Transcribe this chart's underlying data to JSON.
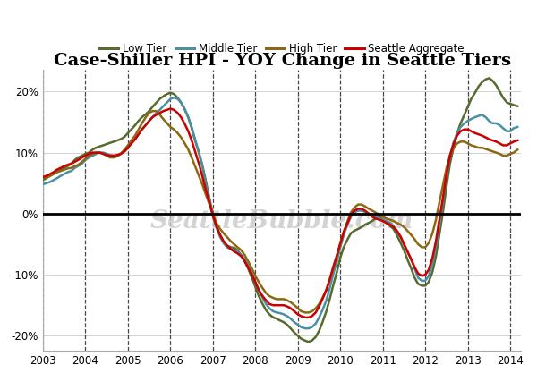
{
  "title": "Case-Shiller HPI - YOY Change in Seattle Tiers",
  "background_color": "#ffffff",
  "watermark": "SeattleBubble.com",
  "ylim": [
    -0.225,
    0.235
  ],
  "yticks": [
    -0.2,
    -0.1,
    0.0,
    0.1,
    0.2
  ],
  "years": [
    2003,
    2004,
    2005,
    2006,
    2007,
    2008,
    2009,
    2010,
    2011,
    2012,
    2013,
    2014
  ],
  "series": {
    "Low Tier": {
      "color": "#556b2f",
      "linewidth": 1.8,
      "data_x": [
        2003.0,
        2003.08,
        2003.17,
        2003.25,
        2003.33,
        2003.42,
        2003.5,
        2003.58,
        2003.67,
        2003.75,
        2003.83,
        2003.92,
        2004.0,
        2004.08,
        2004.17,
        2004.25,
        2004.33,
        2004.42,
        2004.5,
        2004.58,
        2004.67,
        2004.75,
        2004.83,
        2004.92,
        2005.0,
        2005.08,
        2005.17,
        2005.25,
        2005.33,
        2005.42,
        2005.5,
        2005.58,
        2005.67,
        2005.75,
        2005.83,
        2005.92,
        2006.0,
        2006.08,
        2006.17,
        2006.25,
        2006.33,
        2006.42,
        2006.5,
        2006.58,
        2006.67,
        2006.75,
        2006.83,
        2006.92,
        2007.0,
        2007.08,
        2007.17,
        2007.25,
        2007.33,
        2007.42,
        2007.5,
        2007.58,
        2007.67,
        2007.75,
        2007.83,
        2007.92,
        2008.0,
        2008.08,
        2008.17,
        2008.25,
        2008.33,
        2008.42,
        2008.5,
        2008.58,
        2008.67,
        2008.75,
        2008.83,
        2008.92,
        2009.0,
        2009.08,
        2009.17,
        2009.25,
        2009.33,
        2009.42,
        2009.5,
        2009.58,
        2009.67,
        2009.75,
        2009.83,
        2009.92,
        2010.0,
        2010.08,
        2010.17,
        2010.25,
        2010.33,
        2010.42,
        2010.5,
        2010.58,
        2010.67,
        2010.75,
        2010.83,
        2010.92,
        2011.0,
        2011.08,
        2011.17,
        2011.25,
        2011.33,
        2011.42,
        2011.5,
        2011.58,
        2011.67,
        2011.75,
        2011.83,
        2011.92,
        2012.0,
        2012.08,
        2012.17,
        2012.25,
        2012.33,
        2012.42,
        2012.5,
        2012.58,
        2012.67,
        2012.75,
        2012.83,
        2012.92,
        2013.0,
        2013.08,
        2013.17,
        2013.25,
        2013.33,
        2013.42,
        2013.5,
        2013.58,
        2013.67,
        2013.75,
        2013.83,
        2013.92,
        2014.0,
        2014.08,
        2014.17
      ],
      "data_y": [
        0.055,
        0.058,
        0.062,
        0.065,
        0.068,
        0.072,
        0.075,
        0.078,
        0.082,
        0.088,
        0.092,
        0.095,
        0.098,
        0.1,
        0.105,
        0.108,
        0.11,
        0.112,
        0.114,
        0.116,
        0.118,
        0.12,
        0.122,
        0.126,
        0.132,
        0.138,
        0.145,
        0.152,
        0.158,
        0.163,
        0.168,
        0.175,
        0.182,
        0.188,
        0.192,
        0.196,
        0.198,
        0.196,
        0.19,
        0.182,
        0.172,
        0.158,
        0.14,
        0.12,
        0.1,
        0.08,
        0.055,
        0.025,
        -0.002,
        -0.02,
        -0.035,
        -0.045,
        -0.052,
        -0.055,
        -0.056,
        -0.06,
        -0.068,
        -0.078,
        -0.09,
        -0.105,
        -0.12,
        -0.135,
        -0.148,
        -0.158,
        -0.165,
        -0.17,
        -0.172,
        -0.175,
        -0.178,
        -0.182,
        -0.188,
        -0.195,
        -0.2,
        -0.205,
        -0.208,
        -0.21,
        -0.208,
        -0.202,
        -0.192,
        -0.178,
        -0.16,
        -0.14,
        -0.118,
        -0.095,
        -0.072,
        -0.055,
        -0.042,
        -0.032,
        -0.028,
        -0.025,
        -0.022,
        -0.018,
        -0.015,
        -0.012,
        -0.008,
        -0.005,
        -0.01,
        -0.015,
        -0.02,
        -0.025,
        -0.035,
        -0.048,
        -0.06,
        -0.075,
        -0.09,
        -0.105,
        -0.115,
        -0.118,
        -0.118,
        -0.112,
        -0.095,
        -0.07,
        -0.035,
        0.005,
        0.045,
        0.082,
        0.11,
        0.132,
        0.148,
        0.162,
        0.175,
        0.188,
        0.198,
        0.208,
        0.215,
        0.22,
        0.222,
        0.218,
        0.21,
        0.2,
        0.19,
        0.182,
        0.18,
        0.178,
        0.176
      ]
    },
    "Middle Tier": {
      "color": "#4a90a4",
      "linewidth": 1.8,
      "data_x": [
        2003.0,
        2003.08,
        2003.17,
        2003.25,
        2003.33,
        2003.42,
        2003.5,
        2003.58,
        2003.67,
        2003.75,
        2003.83,
        2003.92,
        2004.0,
        2004.08,
        2004.17,
        2004.25,
        2004.33,
        2004.42,
        2004.5,
        2004.58,
        2004.67,
        2004.75,
        2004.83,
        2004.92,
        2005.0,
        2005.08,
        2005.17,
        2005.25,
        2005.33,
        2005.42,
        2005.5,
        2005.58,
        2005.67,
        2005.75,
        2005.83,
        2005.92,
        2006.0,
        2006.08,
        2006.17,
        2006.25,
        2006.33,
        2006.42,
        2006.5,
        2006.58,
        2006.67,
        2006.75,
        2006.83,
        2006.92,
        2007.0,
        2007.08,
        2007.17,
        2007.25,
        2007.33,
        2007.42,
        2007.5,
        2007.58,
        2007.67,
        2007.75,
        2007.83,
        2007.92,
        2008.0,
        2008.08,
        2008.17,
        2008.25,
        2008.33,
        2008.42,
        2008.5,
        2008.58,
        2008.67,
        2008.75,
        2008.83,
        2008.92,
        2009.0,
        2009.08,
        2009.17,
        2009.25,
        2009.33,
        2009.42,
        2009.5,
        2009.58,
        2009.67,
        2009.75,
        2009.83,
        2009.92,
        2010.0,
        2010.08,
        2010.17,
        2010.25,
        2010.33,
        2010.42,
        2010.5,
        2010.58,
        2010.67,
        2010.75,
        2010.83,
        2010.92,
        2011.0,
        2011.08,
        2011.17,
        2011.25,
        2011.33,
        2011.42,
        2011.5,
        2011.58,
        2011.67,
        2011.75,
        2011.83,
        2011.92,
        2012.0,
        2012.08,
        2012.17,
        2012.25,
        2012.33,
        2012.42,
        2012.5,
        2012.58,
        2012.67,
        2012.75,
        2012.83,
        2012.92,
        2013.0,
        2013.08,
        2013.17,
        2013.25,
        2013.33,
        2013.42,
        2013.5,
        2013.58,
        2013.67,
        2013.75,
        2013.83,
        2013.92,
        2014.0,
        2014.08,
        2014.17
      ],
      "data_y": [
        0.048,
        0.05,
        0.052,
        0.055,
        0.058,
        0.062,
        0.065,
        0.068,
        0.07,
        0.075,
        0.078,
        0.082,
        0.088,
        0.092,
        0.095,
        0.098,
        0.1,
        0.1,
        0.098,
        0.096,
        0.095,
        0.096,
        0.098,
        0.102,
        0.108,
        0.115,
        0.122,
        0.13,
        0.138,
        0.145,
        0.152,
        0.158,
        0.165,
        0.17,
        0.176,
        0.182,
        0.188,
        0.19,
        0.188,
        0.182,
        0.172,
        0.158,
        0.142,
        0.122,
        0.1,
        0.078,
        0.052,
        0.022,
        -0.005,
        -0.022,
        -0.038,
        -0.048,
        -0.055,
        -0.058,
        -0.06,
        -0.062,
        -0.068,
        -0.075,
        -0.085,
        -0.098,
        -0.112,
        -0.125,
        -0.138,
        -0.148,
        -0.155,
        -0.16,
        -0.162,
        -0.163,
        -0.165,
        -0.168,
        -0.172,
        -0.178,
        -0.182,
        -0.186,
        -0.188,
        -0.188,
        -0.186,
        -0.18,
        -0.17,
        -0.158,
        -0.142,
        -0.122,
        -0.1,
        -0.078,
        -0.055,
        -0.035,
        -0.018,
        -0.005,
        0.002,
        0.005,
        0.005,
        0.003,
        0.0,
        -0.003,
        -0.005,
        -0.008,
        -0.01,
        -0.012,
        -0.015,
        -0.02,
        -0.028,
        -0.038,
        -0.05,
        -0.062,
        -0.075,
        -0.09,
        -0.105,
        -0.11,
        -0.11,
        -0.102,
        -0.082,
        -0.055,
        -0.02,
        0.022,
        0.062,
        0.095,
        0.118,
        0.132,
        0.142,
        0.148,
        0.152,
        0.155,
        0.158,
        0.16,
        0.162,
        0.158,
        0.152,
        0.148,
        0.148,
        0.145,
        0.14,
        0.135,
        0.135,
        0.14,
        0.142
      ]
    },
    "High Tier": {
      "color": "#8b6914",
      "linewidth": 1.8,
      "data_x": [
        2003.0,
        2003.08,
        2003.17,
        2003.25,
        2003.33,
        2003.42,
        2003.5,
        2003.58,
        2003.67,
        2003.75,
        2003.83,
        2003.92,
        2004.0,
        2004.08,
        2004.17,
        2004.25,
        2004.33,
        2004.42,
        2004.5,
        2004.58,
        2004.67,
        2004.75,
        2004.83,
        2004.92,
        2005.0,
        2005.08,
        2005.17,
        2005.25,
        2005.33,
        2005.42,
        2005.5,
        2005.58,
        2005.67,
        2005.75,
        2005.83,
        2005.92,
        2006.0,
        2006.08,
        2006.17,
        2006.25,
        2006.33,
        2006.42,
        2006.5,
        2006.58,
        2006.67,
        2006.75,
        2006.83,
        2006.92,
        2007.0,
        2007.08,
        2007.17,
        2007.25,
        2007.33,
        2007.42,
        2007.5,
        2007.58,
        2007.67,
        2007.75,
        2007.83,
        2007.92,
        2008.0,
        2008.08,
        2008.17,
        2008.25,
        2008.33,
        2008.42,
        2008.5,
        2008.58,
        2008.67,
        2008.75,
        2008.83,
        2008.92,
        2009.0,
        2009.08,
        2009.17,
        2009.25,
        2009.33,
        2009.42,
        2009.5,
        2009.58,
        2009.67,
        2009.75,
        2009.83,
        2009.92,
        2010.0,
        2010.08,
        2010.17,
        2010.25,
        2010.33,
        2010.42,
        2010.5,
        2010.58,
        2010.67,
        2010.75,
        2010.83,
        2010.92,
        2011.0,
        2011.08,
        2011.17,
        2011.25,
        2011.33,
        2011.42,
        2011.5,
        2011.58,
        2011.67,
        2011.75,
        2011.83,
        2011.92,
        2012.0,
        2012.08,
        2012.17,
        2012.25,
        2012.33,
        2012.42,
        2012.5,
        2012.58,
        2012.67,
        2012.75,
        2012.83,
        2012.92,
        2013.0,
        2013.08,
        2013.17,
        2013.25,
        2013.33,
        2013.42,
        2013.5,
        2013.58,
        2013.67,
        2013.75,
        2013.83,
        2013.92,
        2014.0,
        2014.08,
        2014.17
      ],
      "data_y": [
        0.058,
        0.06,
        0.062,
        0.065,
        0.068,
        0.07,
        0.072,
        0.074,
        0.075,
        0.078,
        0.08,
        0.085,
        0.09,
        0.095,
        0.098,
        0.1,
        0.1,
        0.098,
        0.095,
        0.092,
        0.092,
        0.094,
        0.098,
        0.105,
        0.112,
        0.12,
        0.128,
        0.138,
        0.148,
        0.158,
        0.165,
        0.168,
        0.168,
        0.162,
        0.155,
        0.148,
        0.142,
        0.138,
        0.132,
        0.125,
        0.116,
        0.105,
        0.092,
        0.078,
        0.062,
        0.048,
        0.032,
        0.015,
        0.0,
        -0.015,
        -0.025,
        -0.032,
        -0.038,
        -0.045,
        -0.05,
        -0.055,
        -0.06,
        -0.068,
        -0.078,
        -0.09,
        -0.102,
        -0.112,
        -0.122,
        -0.13,
        -0.135,
        -0.138,
        -0.14,
        -0.14,
        -0.14,
        -0.142,
        -0.145,
        -0.15,
        -0.155,
        -0.16,
        -0.162,
        -0.162,
        -0.16,
        -0.155,
        -0.148,
        -0.138,
        -0.125,
        -0.108,
        -0.09,
        -0.07,
        -0.05,
        -0.03,
        -0.012,
        0.002,
        0.01,
        0.015,
        0.015,
        0.012,
        0.008,
        0.005,
        0.002,
        -0.002,
        -0.005,
        -0.008,
        -0.01,
        -0.012,
        -0.015,
        -0.018,
        -0.022,
        -0.028,
        -0.035,
        -0.042,
        -0.05,
        -0.055,
        -0.055,
        -0.048,
        -0.032,
        -0.01,
        0.018,
        0.048,
        0.075,
        0.095,
        0.108,
        0.115,
        0.118,
        0.118,
        0.115,
        0.112,
        0.11,
        0.108,
        0.108,
        0.106,
        0.104,
        0.102,
        0.1,
        0.098,
        0.095,
        0.095,
        0.098,
        0.1,
        0.105
      ]
    },
    "Seattle Aggregate": {
      "color": "#cc0000",
      "linewidth": 1.8,
      "data_x": [
        2003.0,
        2003.08,
        2003.17,
        2003.25,
        2003.33,
        2003.42,
        2003.5,
        2003.58,
        2003.67,
        2003.75,
        2003.83,
        2003.92,
        2004.0,
        2004.08,
        2004.17,
        2004.25,
        2004.33,
        2004.42,
        2004.5,
        2004.58,
        2004.67,
        2004.75,
        2004.83,
        2004.92,
        2005.0,
        2005.08,
        2005.17,
        2005.25,
        2005.33,
        2005.42,
        2005.5,
        2005.58,
        2005.67,
        2005.75,
        2005.83,
        2005.92,
        2006.0,
        2006.08,
        2006.17,
        2006.25,
        2006.33,
        2006.42,
        2006.5,
        2006.58,
        2006.67,
        2006.75,
        2006.83,
        2006.92,
        2007.0,
        2007.08,
        2007.17,
        2007.25,
        2007.33,
        2007.42,
        2007.5,
        2007.58,
        2007.67,
        2007.75,
        2007.83,
        2007.92,
        2008.0,
        2008.08,
        2008.17,
        2008.25,
        2008.33,
        2008.42,
        2008.5,
        2008.58,
        2008.67,
        2008.75,
        2008.83,
        2008.92,
        2009.0,
        2009.08,
        2009.17,
        2009.25,
        2009.33,
        2009.42,
        2009.5,
        2009.58,
        2009.67,
        2009.75,
        2009.83,
        2009.92,
        2010.0,
        2010.08,
        2010.17,
        2010.25,
        2010.33,
        2010.42,
        2010.5,
        2010.58,
        2010.67,
        2010.75,
        2010.83,
        2010.92,
        2011.0,
        2011.08,
        2011.17,
        2011.25,
        2011.33,
        2011.42,
        2011.5,
        2011.58,
        2011.67,
        2011.75,
        2011.83,
        2011.92,
        2012.0,
        2012.08,
        2012.17,
        2012.25,
        2012.33,
        2012.42,
        2012.5,
        2012.58,
        2012.67,
        2012.75,
        2012.83,
        2012.92,
        2013.0,
        2013.08,
        2013.17,
        2013.25,
        2013.33,
        2013.42,
        2013.5,
        2013.58,
        2013.67,
        2013.75,
        2013.83,
        2013.92,
        2014.0,
        2014.08,
        2014.17
      ],
      "data_y": [
        0.06,
        0.062,
        0.065,
        0.068,
        0.072,
        0.075,
        0.078,
        0.08,
        0.082,
        0.085,
        0.088,
        0.092,
        0.095,
        0.098,
        0.1,
        0.1,
        0.1,
        0.098,
        0.096,
        0.095,
        0.095,
        0.096,
        0.098,
        0.102,
        0.108,
        0.115,
        0.122,
        0.13,
        0.138,
        0.145,
        0.152,
        0.158,
        0.162,
        0.165,
        0.168,
        0.17,
        0.172,
        0.17,
        0.165,
        0.158,
        0.148,
        0.135,
        0.12,
        0.102,
        0.082,
        0.062,
        0.04,
        0.018,
        -0.003,
        -0.02,
        -0.035,
        -0.045,
        -0.052,
        -0.058,
        -0.062,
        -0.065,
        -0.07,
        -0.078,
        -0.088,
        -0.1,
        -0.112,
        -0.125,
        -0.135,
        -0.142,
        -0.148,
        -0.15,
        -0.15,
        -0.15,
        -0.15,
        -0.152,
        -0.155,
        -0.16,
        -0.165,
        -0.168,
        -0.17,
        -0.17,
        -0.168,
        -0.162,
        -0.152,
        -0.14,
        -0.125,
        -0.108,
        -0.088,
        -0.068,
        -0.048,
        -0.03,
        -0.015,
        -0.002,
        0.005,
        0.008,
        0.008,
        0.005,
        0.0,
        -0.005,
        -0.008,
        -0.01,
        -0.012,
        -0.015,
        -0.018,
        -0.022,
        -0.028,
        -0.038,
        -0.05,
        -0.062,
        -0.075,
        -0.088,
        -0.098,
        -0.102,
        -0.1,
        -0.092,
        -0.072,
        -0.045,
        -0.01,
        0.028,
        0.065,
        0.095,
        0.115,
        0.128,
        0.135,
        0.138,
        0.138,
        0.135,
        0.132,
        0.13,
        0.128,
        0.125,
        0.122,
        0.12,
        0.118,
        0.115,
        0.112,
        0.112,
        0.115,
        0.118,
        0.12
      ]
    }
  },
  "legend_order": [
    "Low Tier",
    "Middle Tier",
    "High Tier",
    "Seattle Aggregate"
  ],
  "xlim": [
    2003.0,
    2014.25
  ],
  "vlines": [
    2003,
    2004,
    2005,
    2006,
    2007,
    2008,
    2009,
    2010,
    2011,
    2012,
    2013,
    2014
  ]
}
